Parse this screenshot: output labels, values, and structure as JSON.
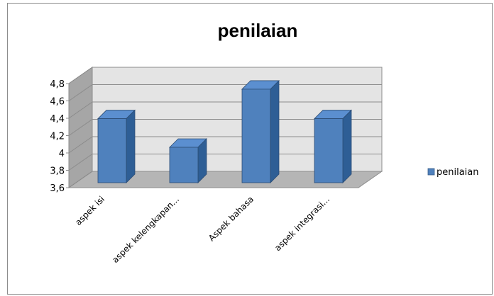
{
  "chart_data": {
    "type": "bar",
    "title": "penilaian",
    "categories": [
      "aspek isi",
      "aspek   kelengkapan...",
      "Aspek bahasa",
      "aspek integrasi..."
    ],
    "series": [
      {
        "name": "penilaian",
        "values": [
          4.33,
          4.0,
          4.67,
          4.33
        ],
        "color": "#4f81bd"
      }
    ],
    "ylim": [
      3.6,
      4.8
    ],
    "yticks": [
      "3,6",
      "3,8",
      "4",
      "4,2",
      "4,4",
      "4,6",
      "4,8"
    ],
    "grid": true,
    "legend": "right",
    "style": "3d-column"
  }
}
